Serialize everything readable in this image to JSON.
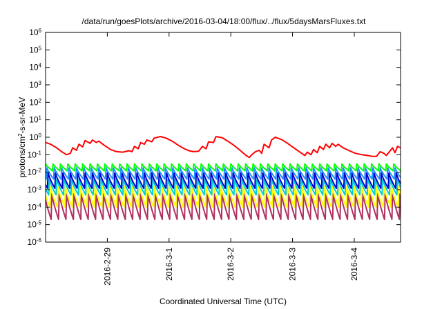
{
  "chart_data": {
    "type": "line",
    "title": "/data/run/goesPlots/archive/2016-03-04/18:00/flux/../flux/5daysMarsFluxes.txt",
    "xlabel": "Coordinated Universal Time (UTC)",
    "ylabel": "protons/cm²-s-sr-MeV",
    "ylabel_parts": {
      "pre": "protons/cm",
      "sup": "2",
      "post": "-s-sr-MeV"
    },
    "log_y": true,
    "ylim": [
      -6,
      6
    ],
    "y_ticks": [
      {
        "exp": -6,
        "base": "10",
        "sup": "-6"
      },
      {
        "exp": -5,
        "base": "10",
        "sup": "-5"
      },
      {
        "exp": -4,
        "base": "10",
        "sup": "-4"
      },
      {
        "exp": -3,
        "base": "10",
        "sup": "-3"
      },
      {
        "exp": -2,
        "base": "10",
        "sup": "-2"
      },
      {
        "exp": -1,
        "base": "10",
        "sup": "-1"
      },
      {
        "exp": 0,
        "base": "10",
        "sup": "0"
      },
      {
        "exp": 1,
        "base": "10",
        "sup": "1"
      },
      {
        "exp": 2,
        "base": "10",
        "sup": "2"
      },
      {
        "exp": 3,
        "base": "10",
        "sup": "3"
      },
      {
        "exp": 4,
        "base": "10",
        "sup": "4"
      },
      {
        "exp": 5,
        "base": "10",
        "sup": "5"
      },
      {
        "exp": 6,
        "base": "10",
        "sup": "6"
      }
    ],
    "xlim": [
      0,
      5.75
    ],
    "x_ticks": [
      {
        "value": 1,
        "label": "2016-2-29"
      },
      {
        "value": 2,
        "label": "2016-3-1"
      },
      {
        "value": 3,
        "label": "2016-3-2"
      },
      {
        "value": 4,
        "label": "2016-3-3"
      },
      {
        "value": 5,
        "label": "2016-3-4"
      }
    ],
    "grid": false,
    "legend": "none",
    "series": [
      {
        "color": "#ff0000",
        "points": [
          [
            0.0,
            0.5
          ],
          [
            0.08,
            0.4
          ],
          [
            0.18,
            0.25
          ],
          [
            0.26,
            0.15
          ],
          [
            0.34,
            0.1
          ],
          [
            0.4,
            0.12
          ],
          [
            0.44,
            0.25
          ],
          [
            0.5,
            0.18
          ],
          [
            0.54,
            0.4
          ],
          [
            0.6,
            0.28
          ],
          [
            0.64,
            0.65
          ],
          [
            0.72,
            0.45
          ],
          [
            0.76,
            0.7
          ],
          [
            0.82,
            0.5
          ],
          [
            0.86,
            0.6
          ],
          [
            0.95,
            0.35
          ],
          [
            1.05,
            0.2
          ],
          [
            1.15,
            0.15
          ],
          [
            1.25,
            0.14
          ],
          [
            1.35,
            0.17
          ],
          [
            1.4,
            0.15
          ],
          [
            1.44,
            0.3
          ],
          [
            1.5,
            0.22
          ],
          [
            1.54,
            0.5
          ],
          [
            1.6,
            0.4
          ],
          [
            1.64,
            0.7
          ],
          [
            1.72,
            0.55
          ],
          [
            1.76,
            0.9
          ],
          [
            1.86,
            1.1
          ],
          [
            1.95,
            0.9
          ],
          [
            2.05,
            0.6
          ],
          [
            2.15,
            0.35
          ],
          [
            2.25,
            0.22
          ],
          [
            2.32,
            0.17
          ],
          [
            2.4,
            0.15
          ],
          [
            2.48,
            0.16
          ],
          [
            2.54,
            0.3
          ],
          [
            2.6,
            0.22
          ],
          [
            2.64,
            0.55
          ],
          [
            2.72,
            0.5
          ],
          [
            2.76,
            1.1
          ],
          [
            2.86,
            0.95
          ],
          [
            2.95,
            0.6
          ],
          [
            3.05,
            0.35
          ],
          [
            3.15,
            0.18
          ],
          [
            3.25,
            0.09
          ],
          [
            3.3,
            0.07
          ],
          [
            3.34,
            0.1
          ],
          [
            3.4,
            0.15
          ],
          [
            3.46,
            0.18
          ],
          [
            3.5,
            0.12
          ],
          [
            3.54,
            0.4
          ],
          [
            3.62,
            0.25
          ],
          [
            3.66,
            0.7
          ],
          [
            3.72,
            1.0
          ],
          [
            3.82,
            0.75
          ],
          [
            3.92,
            0.45
          ],
          [
            4.02,
            0.25
          ],
          [
            4.12,
            0.14
          ],
          [
            4.2,
            0.09
          ],
          [
            4.24,
            0.14
          ],
          [
            4.3,
            0.1
          ],
          [
            4.34,
            0.2
          ],
          [
            4.4,
            0.13
          ],
          [
            4.44,
            0.3
          ],
          [
            4.5,
            0.2
          ],
          [
            4.54,
            0.4
          ],
          [
            4.6,
            0.25
          ],
          [
            4.64,
            0.45
          ],
          [
            4.7,
            0.3
          ],
          [
            4.74,
            0.4
          ],
          [
            4.82,
            0.25
          ],
          [
            4.92,
            0.17
          ],
          [
            5.02,
            0.12
          ],
          [
            5.12,
            0.1
          ],
          [
            5.22,
            0.09
          ],
          [
            5.3,
            0.08
          ],
          [
            5.36,
            0.08
          ],
          [
            5.42,
            0.15
          ],
          [
            5.48,
            0.12
          ],
          [
            5.52,
            0.09
          ],
          [
            5.62,
            0.25
          ],
          [
            5.66,
            0.13
          ],
          [
            5.7,
            0.3
          ],
          [
            5.75,
            0.25
          ]
        ]
      },
      {
        "color": "#00ff00",
        "min": 0.012,
        "max": 0.03,
        "period": 0.12,
        "phase": 0.0
      },
      {
        "color": "#1e90ff",
        "min": 0.004,
        "max": 0.018,
        "period": 0.12,
        "phase": 0.02
      },
      {
        "color": "#0000cd",
        "min": 0.0012,
        "max": 0.009,
        "period": 0.12,
        "phase": 0.04
      },
      {
        "color": "#00ced1",
        "min": 0.0005,
        "max": 0.004,
        "period": 0.12,
        "phase": 0.06
      },
      {
        "color": "#ffff00",
        "min": 0.0001,
        "max": 0.0015,
        "period": 0.12,
        "phase": 0.08
      },
      {
        "color": "#b03060",
        "min": 2e-05,
        "max": 0.0006,
        "period": 0.12,
        "phase": 0.1
      }
    ]
  }
}
